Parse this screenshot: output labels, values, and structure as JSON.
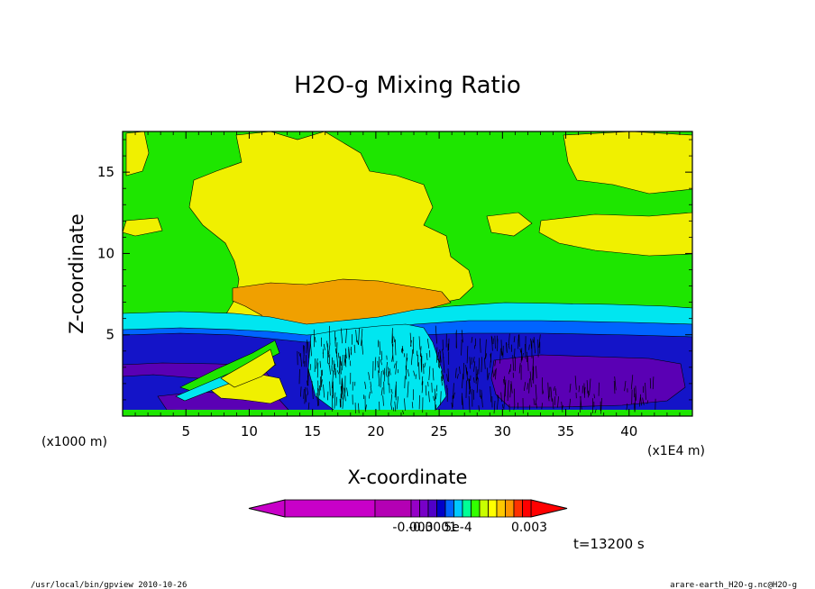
{
  "chart_data": {
    "type": "heatmap",
    "title": "H2O-g Mixing Ratio",
    "xlabel": "X-coordinate",
    "ylabel": "Z-coordinate",
    "x_scale_label": "(x1E4 m)",
    "y_scale_label": "(x1000 m)",
    "xlim": [
      0,
      45
    ],
    "ylim": [
      0,
      17.5
    ],
    "x_ticks": [
      5,
      10,
      15,
      20,
      25,
      30,
      35,
      40
    ],
    "y_ticks": [
      5,
      10,
      15
    ],
    "x_tick_labels": [
      "5",
      "10",
      "15",
      "20",
      "25",
      "30",
      "35",
      "40"
    ],
    "y_tick_labels": [
      "5",
      "10",
      "15"
    ],
    "colorbar": {
      "colors": [
        "#c800c8",
        "#b400b4",
        "#9600c8",
        "#7800c8",
        "#5000c8",
        "#0000c8",
        "#0064ff",
        "#00c8ff",
        "#00ff96",
        "#32ff00",
        "#c8ff00",
        "#ffff00",
        "#ffc800",
        "#ff9600",
        "#ff3200",
        "#ff0000"
      ],
      "labels": [
        "-0.003",
        "-0.0001",
        "5e-4",
        "0.003"
      ]
    },
    "time_label": "t=13200 s",
    "footer_left": "/usr/local/bin/gpview  2010-10-26",
    "footer_right": "arare-earth_H2O-g.nc@H2O-g"
  }
}
